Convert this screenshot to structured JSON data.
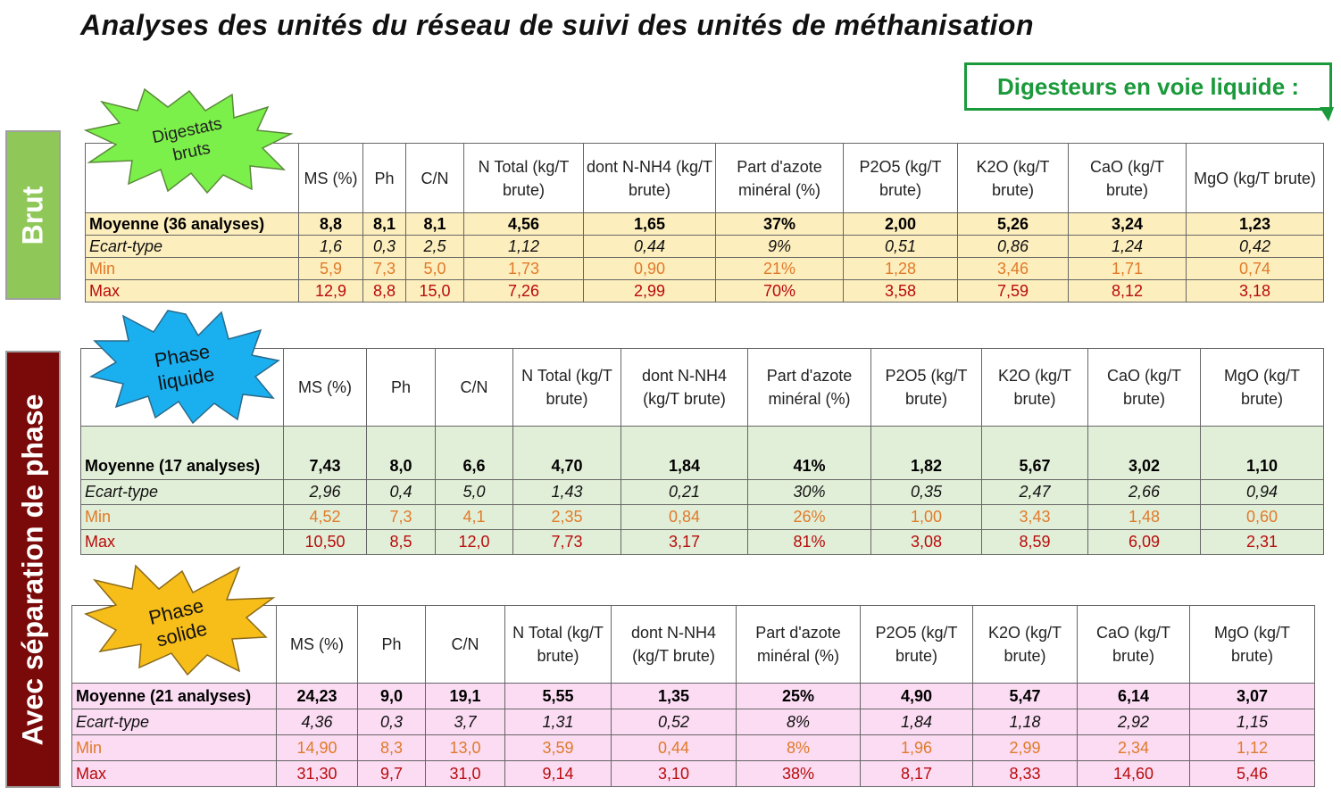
{
  "title": "Analyses des unités du réseau de suivi des unités de méthanisation",
  "callout": "Digesteurs en voie liquide :",
  "side_labels": {
    "brut": "Brut",
    "separation": "Avec séparation de phase"
  },
  "colors": {
    "green_border": "#1a9a3a",
    "brut_label": "#8fc858",
    "sep_label": "#7a0a0a",
    "t1_fill": "#fdeebd",
    "t2_fill": "#e2efd8",
    "t3_fill": "#fbdcf3",
    "min_text": "#e07a2a",
    "max_text": "#b80b0b"
  },
  "tables": [
    {
      "badge": [
        "Digestats",
        "bruts"
      ],
      "badge_color": "#7cf04a",
      "headers": [
        "MS (%)",
        "Ph",
        "C/N",
        "N Total (kg/T brute)",
        "dont N-NH4 (kg/T brute)",
        "Part d'azote minéral (%)",
        "P2O5 (kg/T brute)",
        "K2O (kg/T brute)",
        "CaO (kg/T brute)",
        "MgO (kg/T brute)"
      ],
      "rows": [
        {
          "label": "Moyenne (36 analyses)",
          "values": [
            "8,8",
            "8,1",
            "8,1",
            "4,56",
            "1,65",
            "37%",
            "2,00",
            "5,26",
            "3,24",
            "1,23"
          ]
        },
        {
          "label": "Ecart-type",
          "values": [
            "1,6",
            "0,3",
            "2,5",
            "1,12",
            "0,44",
            "9%",
            "0,51",
            "0,86",
            "1,24",
            "0,42"
          ]
        },
        {
          "label": "Min",
          "values": [
            "5,9",
            "7,3",
            "5,0",
            "1,73",
            "0,90",
            "21%",
            "1,28",
            "3,46",
            "1,71",
            "0,74"
          ]
        },
        {
          "label": "Max",
          "values": [
            "12,9",
            "8,8",
            "15,0",
            "7,26",
            "2,99",
            "70%",
            "3,58",
            "7,59",
            "8,12",
            "3,18"
          ]
        }
      ]
    },
    {
      "badge": [
        "Phase",
        "liquide"
      ],
      "badge_color": "#1ab0f0",
      "headers": [
        "MS (%)",
        "Ph",
        "C/N",
        "N Total (kg/T brute)",
        "dont N-NH4 (kg/T brute)",
        "Part d'azote minéral (%)",
        "P2O5 (kg/T brute)",
        "K2O (kg/T brute)",
        "CaO (kg/T brute)",
        "MgO (kg/T brute)"
      ],
      "rows": [
        {
          "label": "Moyenne (17 analyses)",
          "values": [
            "7,43",
            "8,0",
            "6,6",
            "4,70",
            "1,84",
            "41%",
            "1,82",
            "5,67",
            "3,02",
            "1,10"
          ]
        },
        {
          "label": "Ecart-type",
          "values": [
            "2,96",
            "0,4",
            "5,0",
            "1,43",
            "0,21",
            "30%",
            "0,35",
            "2,47",
            "2,66",
            "0,94"
          ]
        },
        {
          "label": "Min",
          "values": [
            "4,52",
            "7,3",
            "4,1",
            "2,35",
            "0,84",
            "26%",
            "1,00",
            "3,43",
            "1,48",
            "0,60"
          ]
        },
        {
          "label": "Max",
          "values": [
            "10,50",
            "8,5",
            "12,0",
            "7,73",
            "3,17",
            "81%",
            "3,08",
            "8,59",
            "6,09",
            "2,31"
          ]
        }
      ]
    },
    {
      "badge": [
        "Phase",
        "solide"
      ],
      "badge_color": "#f7be1a",
      "headers": [
        "MS (%)",
        "Ph",
        "C/N",
        "N Total (kg/T brute)",
        "dont N-NH4 (kg/T brute)",
        "Part d'azote minéral (%)",
        "P2O5 (kg/T brute)",
        "K2O (kg/T brute)",
        "CaO (kg/T brute)",
        "MgO (kg/T brute)"
      ],
      "rows": [
        {
          "label": "Moyenne (21 analyses)",
          "values": [
            "24,23",
            "9,0",
            "19,1",
            "5,55",
            "1,35",
            "25%",
            "4,90",
            "5,47",
            "6,14",
            "3,07"
          ]
        },
        {
          "label": "Ecart-type",
          "values": [
            "4,36",
            "0,3",
            "3,7",
            "1,31",
            "0,52",
            "8%",
            "1,84",
            "1,18",
            "2,92",
            "1,15"
          ]
        },
        {
          "label": "Min",
          "values": [
            "14,90",
            "8,3",
            "13,0",
            "3,59",
            "0,44",
            "8%",
            "1,96",
            "2,99",
            "2,34",
            "1,12"
          ]
        },
        {
          "label": "Max",
          "values": [
            "31,30",
            "9,7",
            "31,0",
            "9,14",
            "3,10",
            "38%",
            "8,17",
            "8,33",
            "14,60",
            "5,46"
          ]
        }
      ]
    }
  ]
}
